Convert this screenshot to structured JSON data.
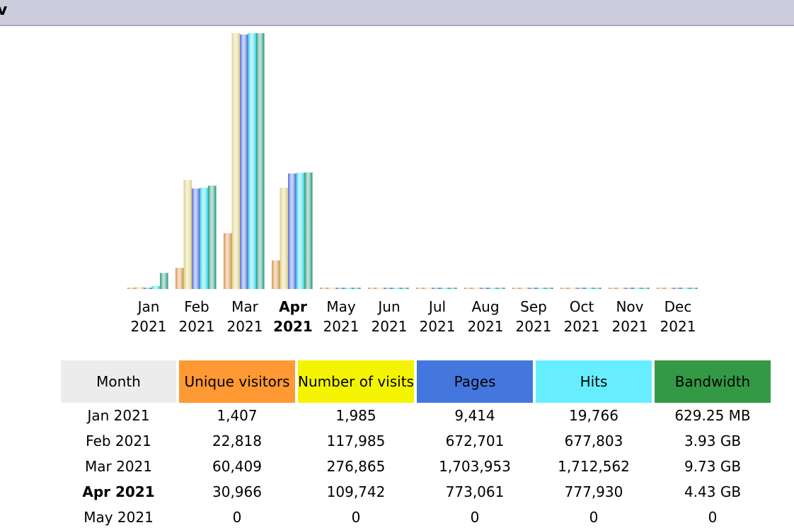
{
  "header": {
    "title": "v"
  },
  "colors": {
    "unique": "#ff9933",
    "visits": "#f4f400",
    "pages": "#4477dd",
    "hits": "#66eeff",
    "bandwidth": "#339944",
    "bar_unique": "#d08a35",
    "bar_visits": "#d8cc78",
    "bar_pages": "#3f5fd8",
    "bar_hits": "#28d6e6",
    "bar_bandwidth": "#149070",
    "header_month": "#ececec"
  },
  "table": {
    "headers": [
      "Month",
      "Unique visitors",
      "Number of visits",
      "Pages",
      "Hits",
      "Bandwidth"
    ],
    "rows": [
      {
        "month": "Jan 2021",
        "unique": "1,407",
        "visits": "1,985",
        "pages": "9,414",
        "hits": "19,766",
        "bandwidth": "629.25 MB"
      },
      {
        "month": "Feb 2021",
        "unique": "22,818",
        "visits": "117,985",
        "pages": "672,701",
        "hits": "677,803",
        "bandwidth": "3.93 GB"
      },
      {
        "month": "Mar 2021",
        "unique": "60,409",
        "visits": "276,865",
        "pages": "1,703,953",
        "hits": "1,712,562",
        "bandwidth": "9.73 GB"
      },
      {
        "month": "Apr 2021",
        "unique": "30,966",
        "visits": "109,742",
        "pages": "773,061",
        "hits": "777,930",
        "bandwidth": "4.43 GB"
      },
      {
        "month": "May 2021",
        "unique": "0",
        "visits": "0",
        "pages": "0",
        "hits": "0",
        "bandwidth": "0"
      }
    ]
  },
  "chart_data": {
    "type": "bar",
    "categories": [
      {
        "month": "Jan",
        "year": "2021"
      },
      {
        "month": "Feb",
        "year": "2021"
      },
      {
        "month": "Mar",
        "year": "2021"
      },
      {
        "month": "Apr",
        "year": "2021"
      },
      {
        "month": "May",
        "year": "2021"
      },
      {
        "month": "Jun",
        "year": "2021"
      },
      {
        "month": "Jul",
        "year": "2021"
      },
      {
        "month": "Aug",
        "year": "2021"
      },
      {
        "month": "Sep",
        "year": "2021"
      },
      {
        "month": "Oct",
        "year": "2021"
      },
      {
        "month": "Nov",
        "year": "2021"
      },
      {
        "month": "Dec",
        "year": "2021"
      }
    ],
    "current_index": 3,
    "series": [
      {
        "key": "unique",
        "values": [
          1407,
          22818,
          60409,
          30966,
          0,
          0,
          0,
          0,
          0,
          0,
          0,
          0
        ]
      },
      {
        "key": "visits",
        "values": [
          1985,
          117985,
          276865,
          109742,
          0,
          0,
          0,
          0,
          0,
          0,
          0,
          0
        ]
      },
      {
        "key": "pages",
        "values": [
          9414,
          672701,
          1703953,
          773061,
          0,
          0,
          0,
          0,
          0,
          0,
          0,
          0
        ]
      },
      {
        "key": "hits",
        "values": [
          19766,
          677803,
          1712562,
          777930,
          0,
          0,
          0,
          0,
          0,
          0,
          0,
          0
        ]
      },
      {
        "key": "bandwidth",
        "unit": "GB",
        "values": [
          0.61,
          3.93,
          9.73,
          4.43,
          0,
          0,
          0,
          0,
          0,
          0,
          0,
          0
        ]
      }
    ]
  }
}
